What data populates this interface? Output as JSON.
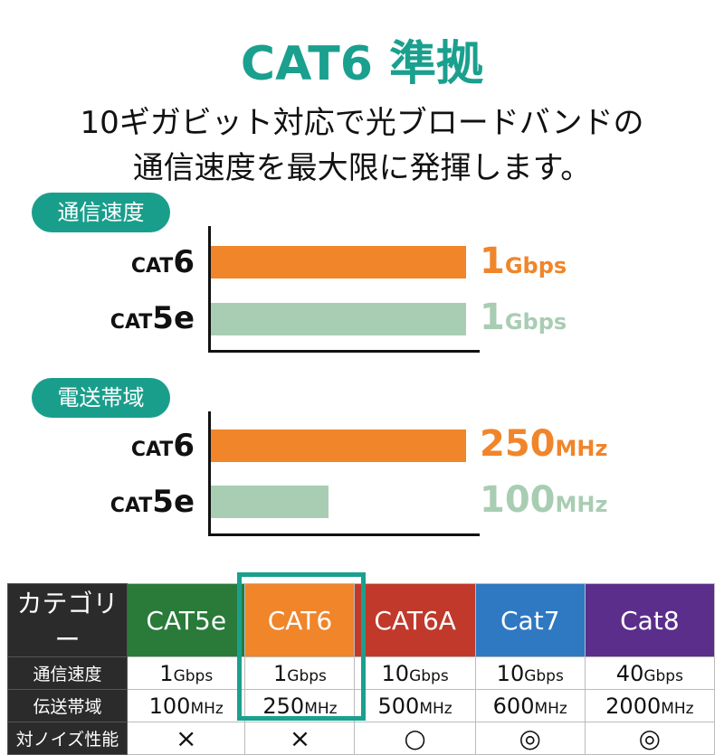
{
  "title": "CAT6 準拠",
  "subtitle": [
    "10ギガビット対応で光ブロードバンドの",
    "通信速度を最大限に発揮します。"
  ],
  "colors": {
    "teal": "#1a9e8c",
    "orange": "#f0852a",
    "light_green": "#a8cdb3",
    "cat5e": "#2a7a3a",
    "cat6": "#f0852a",
    "cat6a": "#c0392b",
    "cat7": "#2f78c2",
    "cat8": "#5a2e8a"
  },
  "chart_data": [
    {
      "type": "bar",
      "orientation": "horizontal",
      "title": "通信速度",
      "categories": [
        "CAT6",
        "CAT5e"
      ],
      "values": [
        1,
        1
      ],
      "unit": "Gbps",
      "labels": [
        "1",
        "1"
      ]
    },
    {
      "type": "bar",
      "orientation": "horizontal",
      "title": "電送帯域",
      "categories": [
        "CAT6",
        "CAT5e"
      ],
      "values": [
        250,
        100
      ],
      "unit": "MHz",
      "labels": [
        "250",
        "100"
      ]
    }
  ],
  "cat_prefix": "CAT",
  "cat6_suffix": "6",
  "cat5e_suffix": "5e",
  "table": {
    "row_headers": [
      "カテゴリー",
      "通信速度",
      "伝送帯域",
      "対ノイズ性能"
    ],
    "columns": [
      {
        "name": "CAT5e",
        "speed": "1",
        "speed_unit": "Gbps",
        "band": "100",
        "band_unit": "MHz",
        "noise": "×"
      },
      {
        "name": "CAT6",
        "speed": "1",
        "speed_unit": "Gbps",
        "band": "250",
        "band_unit": "MHz",
        "noise": "×"
      },
      {
        "name": "CAT6A",
        "speed": "10",
        "speed_unit": "Gbps",
        "band": "500",
        "band_unit": "MHz",
        "noise": "○"
      },
      {
        "name": "Cat7",
        "speed": "10",
        "speed_unit": "Gbps",
        "band": "600",
        "band_unit": "MHz",
        "noise": "◎"
      },
      {
        "name": "Cat8",
        "speed": "40",
        "speed_unit": "Gbps",
        "band": "2000",
        "band_unit": "MHz",
        "noise": "◎"
      }
    ],
    "highlighted": "CAT6"
  }
}
